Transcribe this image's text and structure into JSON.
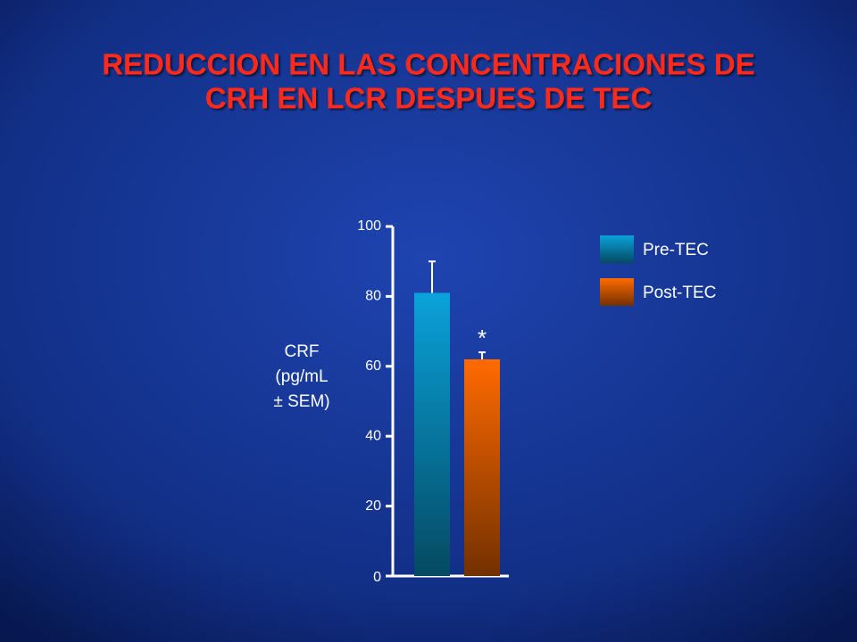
{
  "chart_data": {
    "type": "bar",
    "title": [
      "REDUCCION EN LAS CONCENTRACIONES DE",
      "CRH EN LCR DESPUES DE TEC"
    ],
    "ylabel": [
      "CRF",
      "(pg/mL",
      "± SEM)"
    ],
    "categories": [
      null
    ],
    "series": [
      {
        "name": "Pre-TEC",
        "color": "#0aa2da",
        "values": [
          81
        ],
        "errors": [
          9
        ]
      },
      {
        "name": "Post-TEC",
        "color": "#ff6a00",
        "values": [
          62
        ],
        "errors": [
          2
        ]
      }
    ],
    "annotation": "*",
    "ylim": [
      0,
      100
    ],
    "yticks": [
      0,
      20,
      40,
      60,
      80,
      100
    ],
    "legend": "right"
  }
}
